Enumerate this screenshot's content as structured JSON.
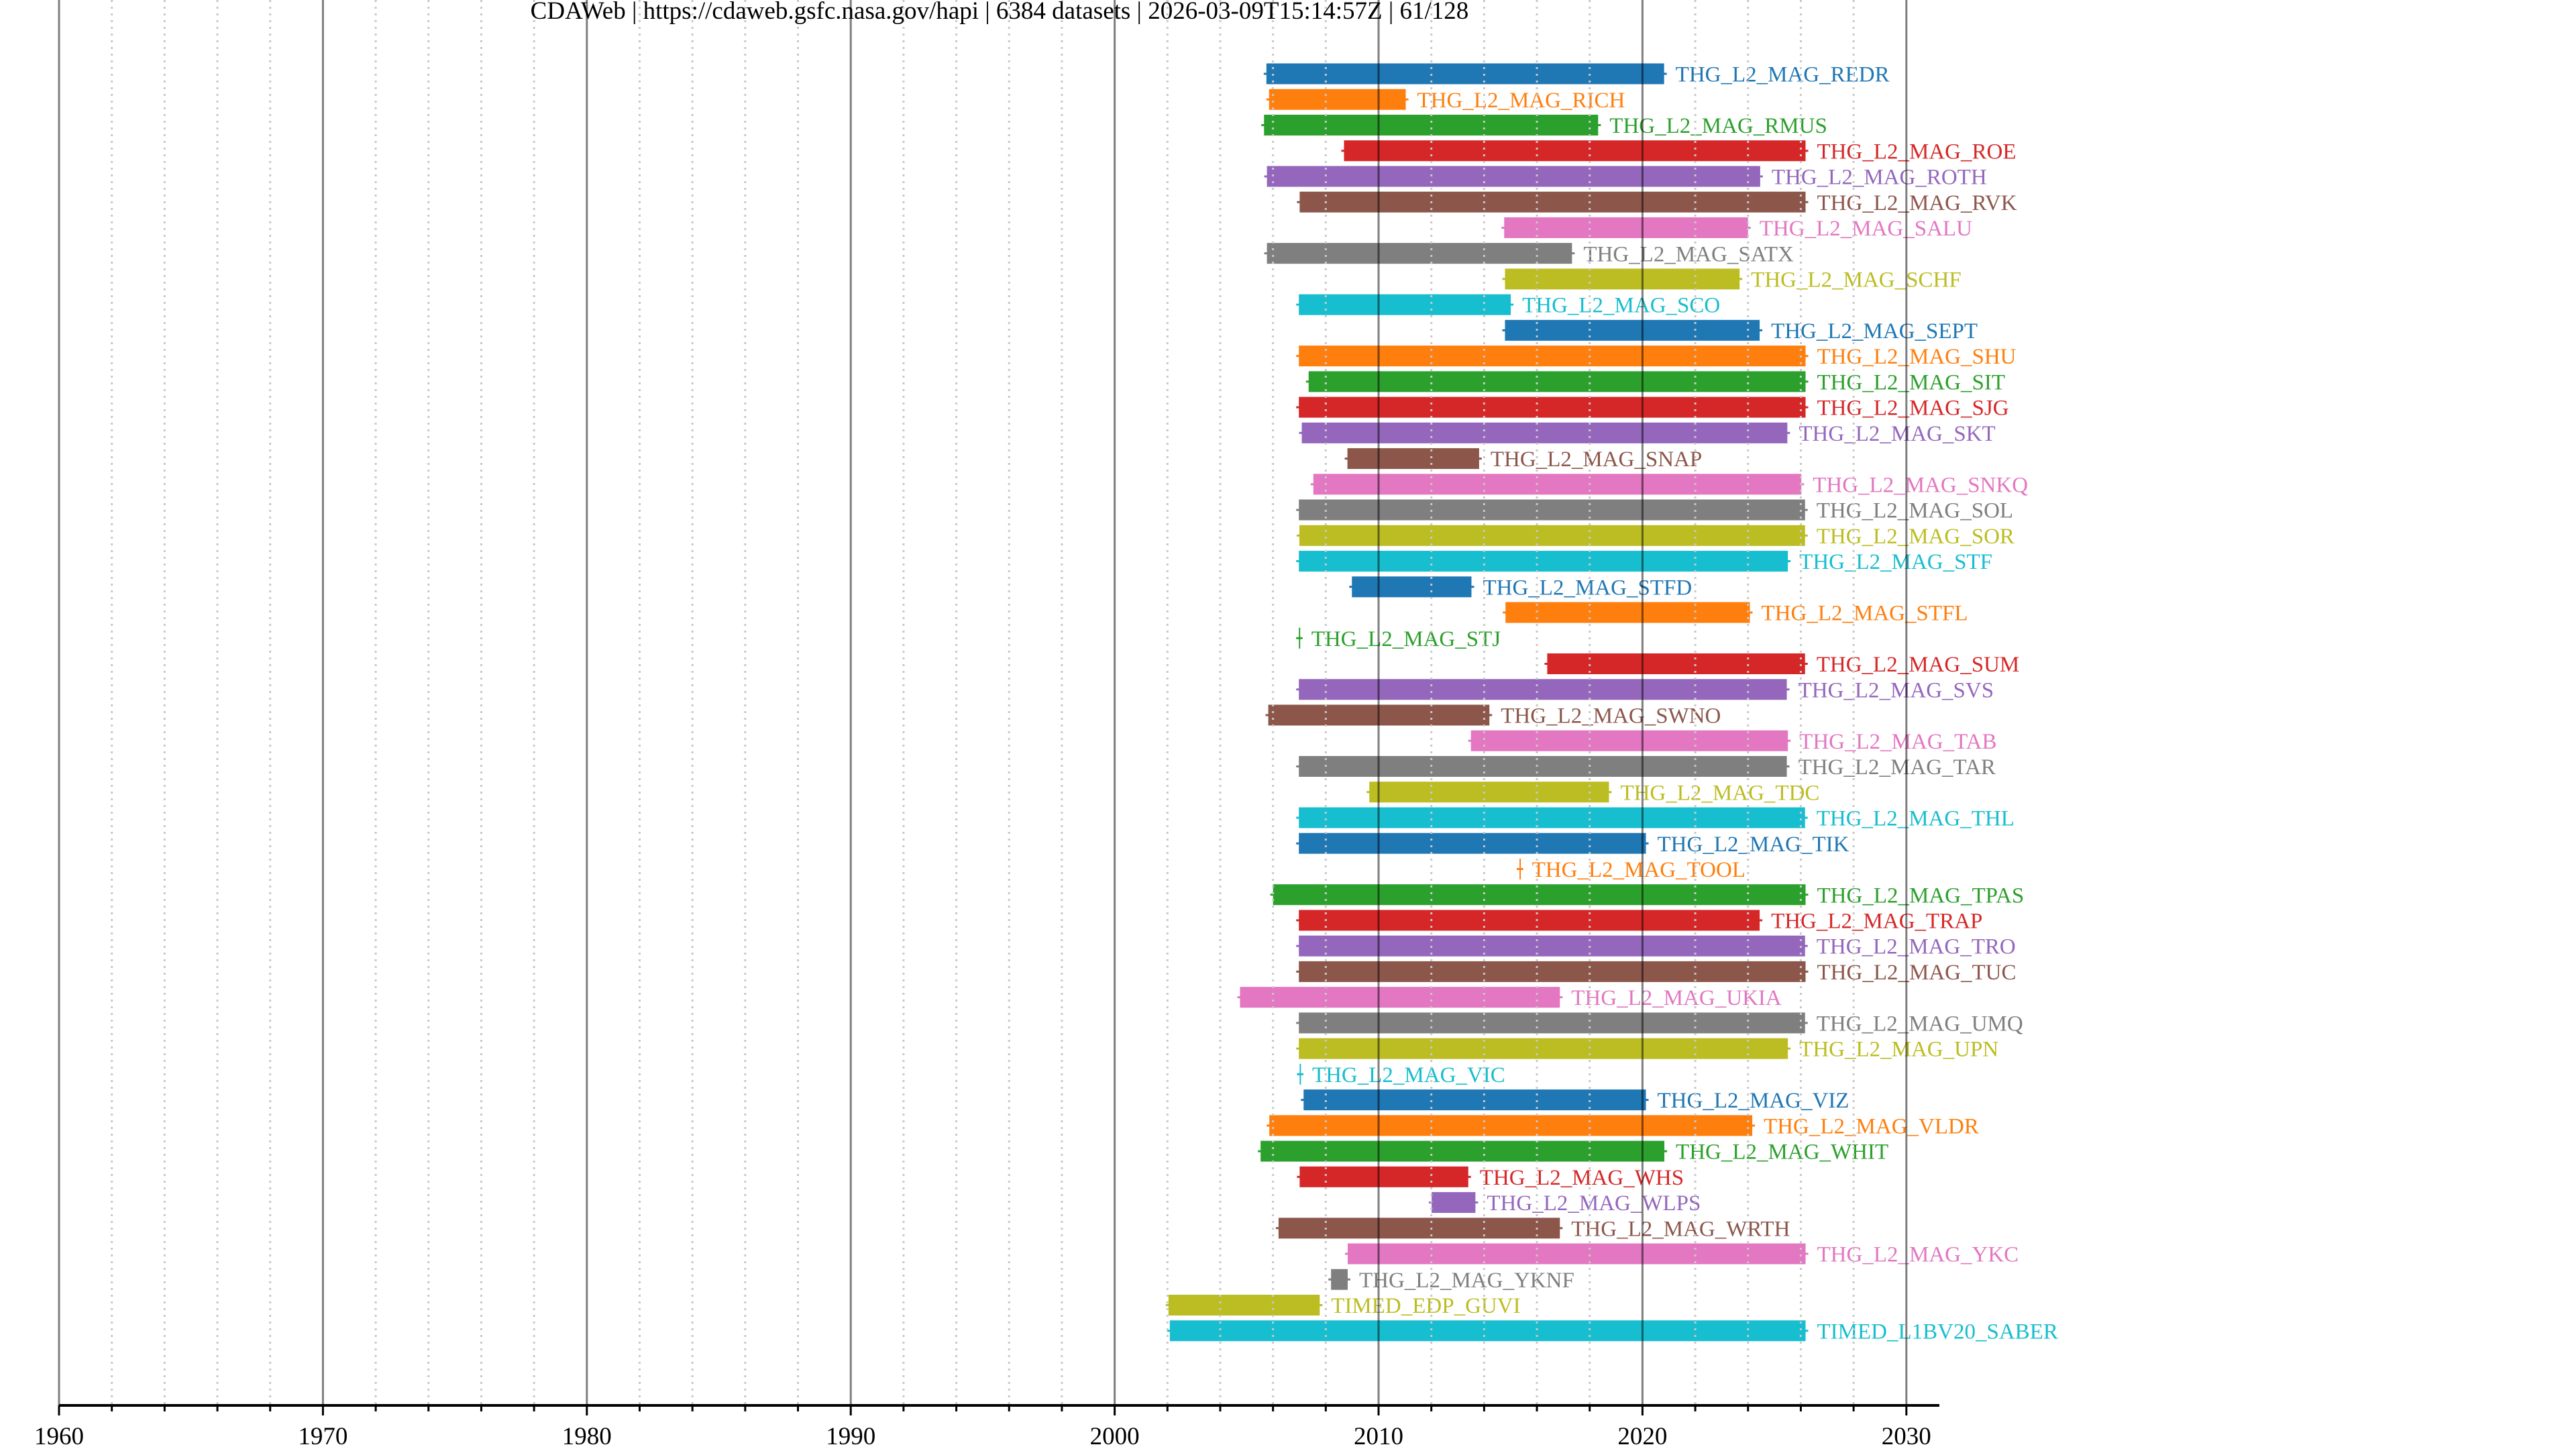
{
  "chart_data": {
    "type": "bar",
    "orientation": "horizontal-range",
    "title": "CDAWeb | https://cdaweb.gsfc.nasa.gov/hapi | 6384 datasets | 2026-03-09T15:14:57Z | 61/128",
    "xlabel": "",
    "ylabel": "",
    "xlim": [
      1960,
      2031.25
    ],
    "x_major_ticks": [
      1960,
      1970,
      1980,
      1990,
      2000,
      2010,
      2020,
      2030
    ],
    "x_tick_labels": [
      "1960",
      "1970",
      "1980",
      "1990",
      "2000",
      "2010",
      "2020",
      "2030"
    ],
    "x_minor_tick_step": 2,
    "grid": true,
    "legend": "none (labels at bar ends)",
    "palette": [
      "#1f77b4",
      "#ff7f0e",
      "#2ca02c",
      "#d62728",
      "#9467bd",
      "#8c564b",
      "#e377c2",
      "#7f7f7f",
      "#bcbd22",
      "#17becf"
    ],
    "series": [
      {
        "name": "THG_L2_MAG_REDR",
        "start": 2005.75,
        "end": 2020.82
      },
      {
        "name": "THG_L2_MAG_RICH",
        "start": 2005.85,
        "end": 2011.03
      },
      {
        "name": "THG_L2_MAG_RMUS",
        "start": 2005.66,
        "end": 2018.32
      },
      {
        "name": "THG_L2_MAG_ROE",
        "start": 2008.69,
        "end": 2026.18
      },
      {
        "name": "THG_L2_MAG_ROTH",
        "start": 2005.77,
        "end": 2024.46
      },
      {
        "name": "THG_L2_MAG_RVK",
        "start": 2007.01,
        "end": 2026.18
      },
      {
        "name": "THG_L2_MAG_SALU",
        "start": 2014.76,
        "end": 2024.0
      },
      {
        "name": "THG_L2_MAG_SATX",
        "start": 2005.77,
        "end": 2017.33
      },
      {
        "name": "THG_L2_MAG_SCHF",
        "start": 2014.79,
        "end": 2023.68
      },
      {
        "name": "THG_L2_MAG_SCO",
        "start": 2006.98,
        "end": 2015.01
      },
      {
        "name": "THG_L2_MAG_SEPT",
        "start": 2014.79,
        "end": 2024.44
      },
      {
        "name": "THG_L2_MAG_SHU",
        "start": 2006.98,
        "end": 2026.18
      },
      {
        "name": "THG_L2_MAG_SIT",
        "start": 2007.35,
        "end": 2026.18
      },
      {
        "name": "THG_L2_MAG_SJG",
        "start": 2006.98,
        "end": 2026.18
      },
      {
        "name": "THG_L2_MAG_SKT",
        "start": 2007.09,
        "end": 2025.49
      },
      {
        "name": "THG_L2_MAG_SNAP",
        "start": 2008.82,
        "end": 2013.81
      },
      {
        "name": "THG_L2_MAG_SNKQ",
        "start": 2007.53,
        "end": 2026.02
      },
      {
        "name": "THG_L2_MAG_SOL",
        "start": 2006.98,
        "end": 2026.16
      },
      {
        "name": "THG_L2_MAG_SOR",
        "start": 2007.0,
        "end": 2026.16
      },
      {
        "name": "THG_L2_MAG_STF",
        "start": 2006.98,
        "end": 2025.51
      },
      {
        "name": "THG_L2_MAG_STFD",
        "start": 2008.99,
        "end": 2013.52
      },
      {
        "name": "THG_L2_MAG_STFL",
        "start": 2014.81,
        "end": 2024.07
      },
      {
        "name": "THG_L2_MAG_STJ",
        "start": 2006.98,
        "end": 2007.02
      },
      {
        "name": "THG_L2_MAG_SUM",
        "start": 2016.39,
        "end": 2026.16
      },
      {
        "name": "THG_L2_MAG_SVS",
        "start": 2006.98,
        "end": 2025.47
      },
      {
        "name": "THG_L2_MAG_SWNO",
        "start": 2005.82,
        "end": 2014.2
      },
      {
        "name": "THG_L2_MAG_TAB",
        "start": 2013.5,
        "end": 2025.51
      },
      {
        "name": "THG_L2_MAG_TAR",
        "start": 2006.98,
        "end": 2025.47
      },
      {
        "name": "THG_L2_MAG_TDC",
        "start": 2009.65,
        "end": 2018.73
      },
      {
        "name": "THG_L2_MAG_THL",
        "start": 2006.98,
        "end": 2026.16
      },
      {
        "name": "THG_L2_MAG_TIK",
        "start": 2006.98,
        "end": 2020.13
      },
      {
        "name": "THG_L2_MAG_TOOL",
        "start": 2015.34,
        "end": 2015.38
      },
      {
        "name": "THG_L2_MAG_TPAS",
        "start": 2006.0,
        "end": 2026.18
      },
      {
        "name": "THG_L2_MAG_TRAP",
        "start": 2006.98,
        "end": 2024.44
      },
      {
        "name": "THG_L2_MAG_TRO",
        "start": 2006.98,
        "end": 2026.16
      },
      {
        "name": "THG_L2_MAG_TUC",
        "start": 2006.98,
        "end": 2026.18
      },
      {
        "name": "THG_L2_MAG_UKIA",
        "start": 2004.75,
        "end": 2016.87
      },
      {
        "name": "THG_L2_MAG_UMQ",
        "start": 2006.98,
        "end": 2026.16
      },
      {
        "name": "THG_L2_MAG_UPN",
        "start": 2006.98,
        "end": 2025.51
      },
      {
        "name": "THG_L2_MAG_VIC",
        "start": 2007.01,
        "end": 2007.05
      },
      {
        "name": "THG_L2_MAG_VIZ",
        "start": 2007.16,
        "end": 2020.13
      },
      {
        "name": "THG_L2_MAG_VLDR",
        "start": 2005.86,
        "end": 2024.16
      },
      {
        "name": "THG_L2_MAG_WHIT",
        "start": 2005.53,
        "end": 2020.83
      },
      {
        "name": "THG_L2_MAG_WHS",
        "start": 2007.01,
        "end": 2013.4
      },
      {
        "name": "THG_L2_MAG_WLPS",
        "start": 2012.01,
        "end": 2013.67
      },
      {
        "name": "THG_L2_MAG_WRTH",
        "start": 2006.21,
        "end": 2016.87
      },
      {
        "name": "THG_L2_MAG_YKC",
        "start": 2008.83,
        "end": 2026.18
      },
      {
        "name": "THG_L2_MAG_YKNF",
        "start": 2008.2,
        "end": 2008.83
      },
      {
        "name": "TIMED_EDP_GUVI",
        "start": 2002.04,
        "end": 2007.77
      },
      {
        "name": "TIMED_L1BV20_SABER",
        "start": 2002.09,
        "end": 2026.18
      }
    ]
  }
}
